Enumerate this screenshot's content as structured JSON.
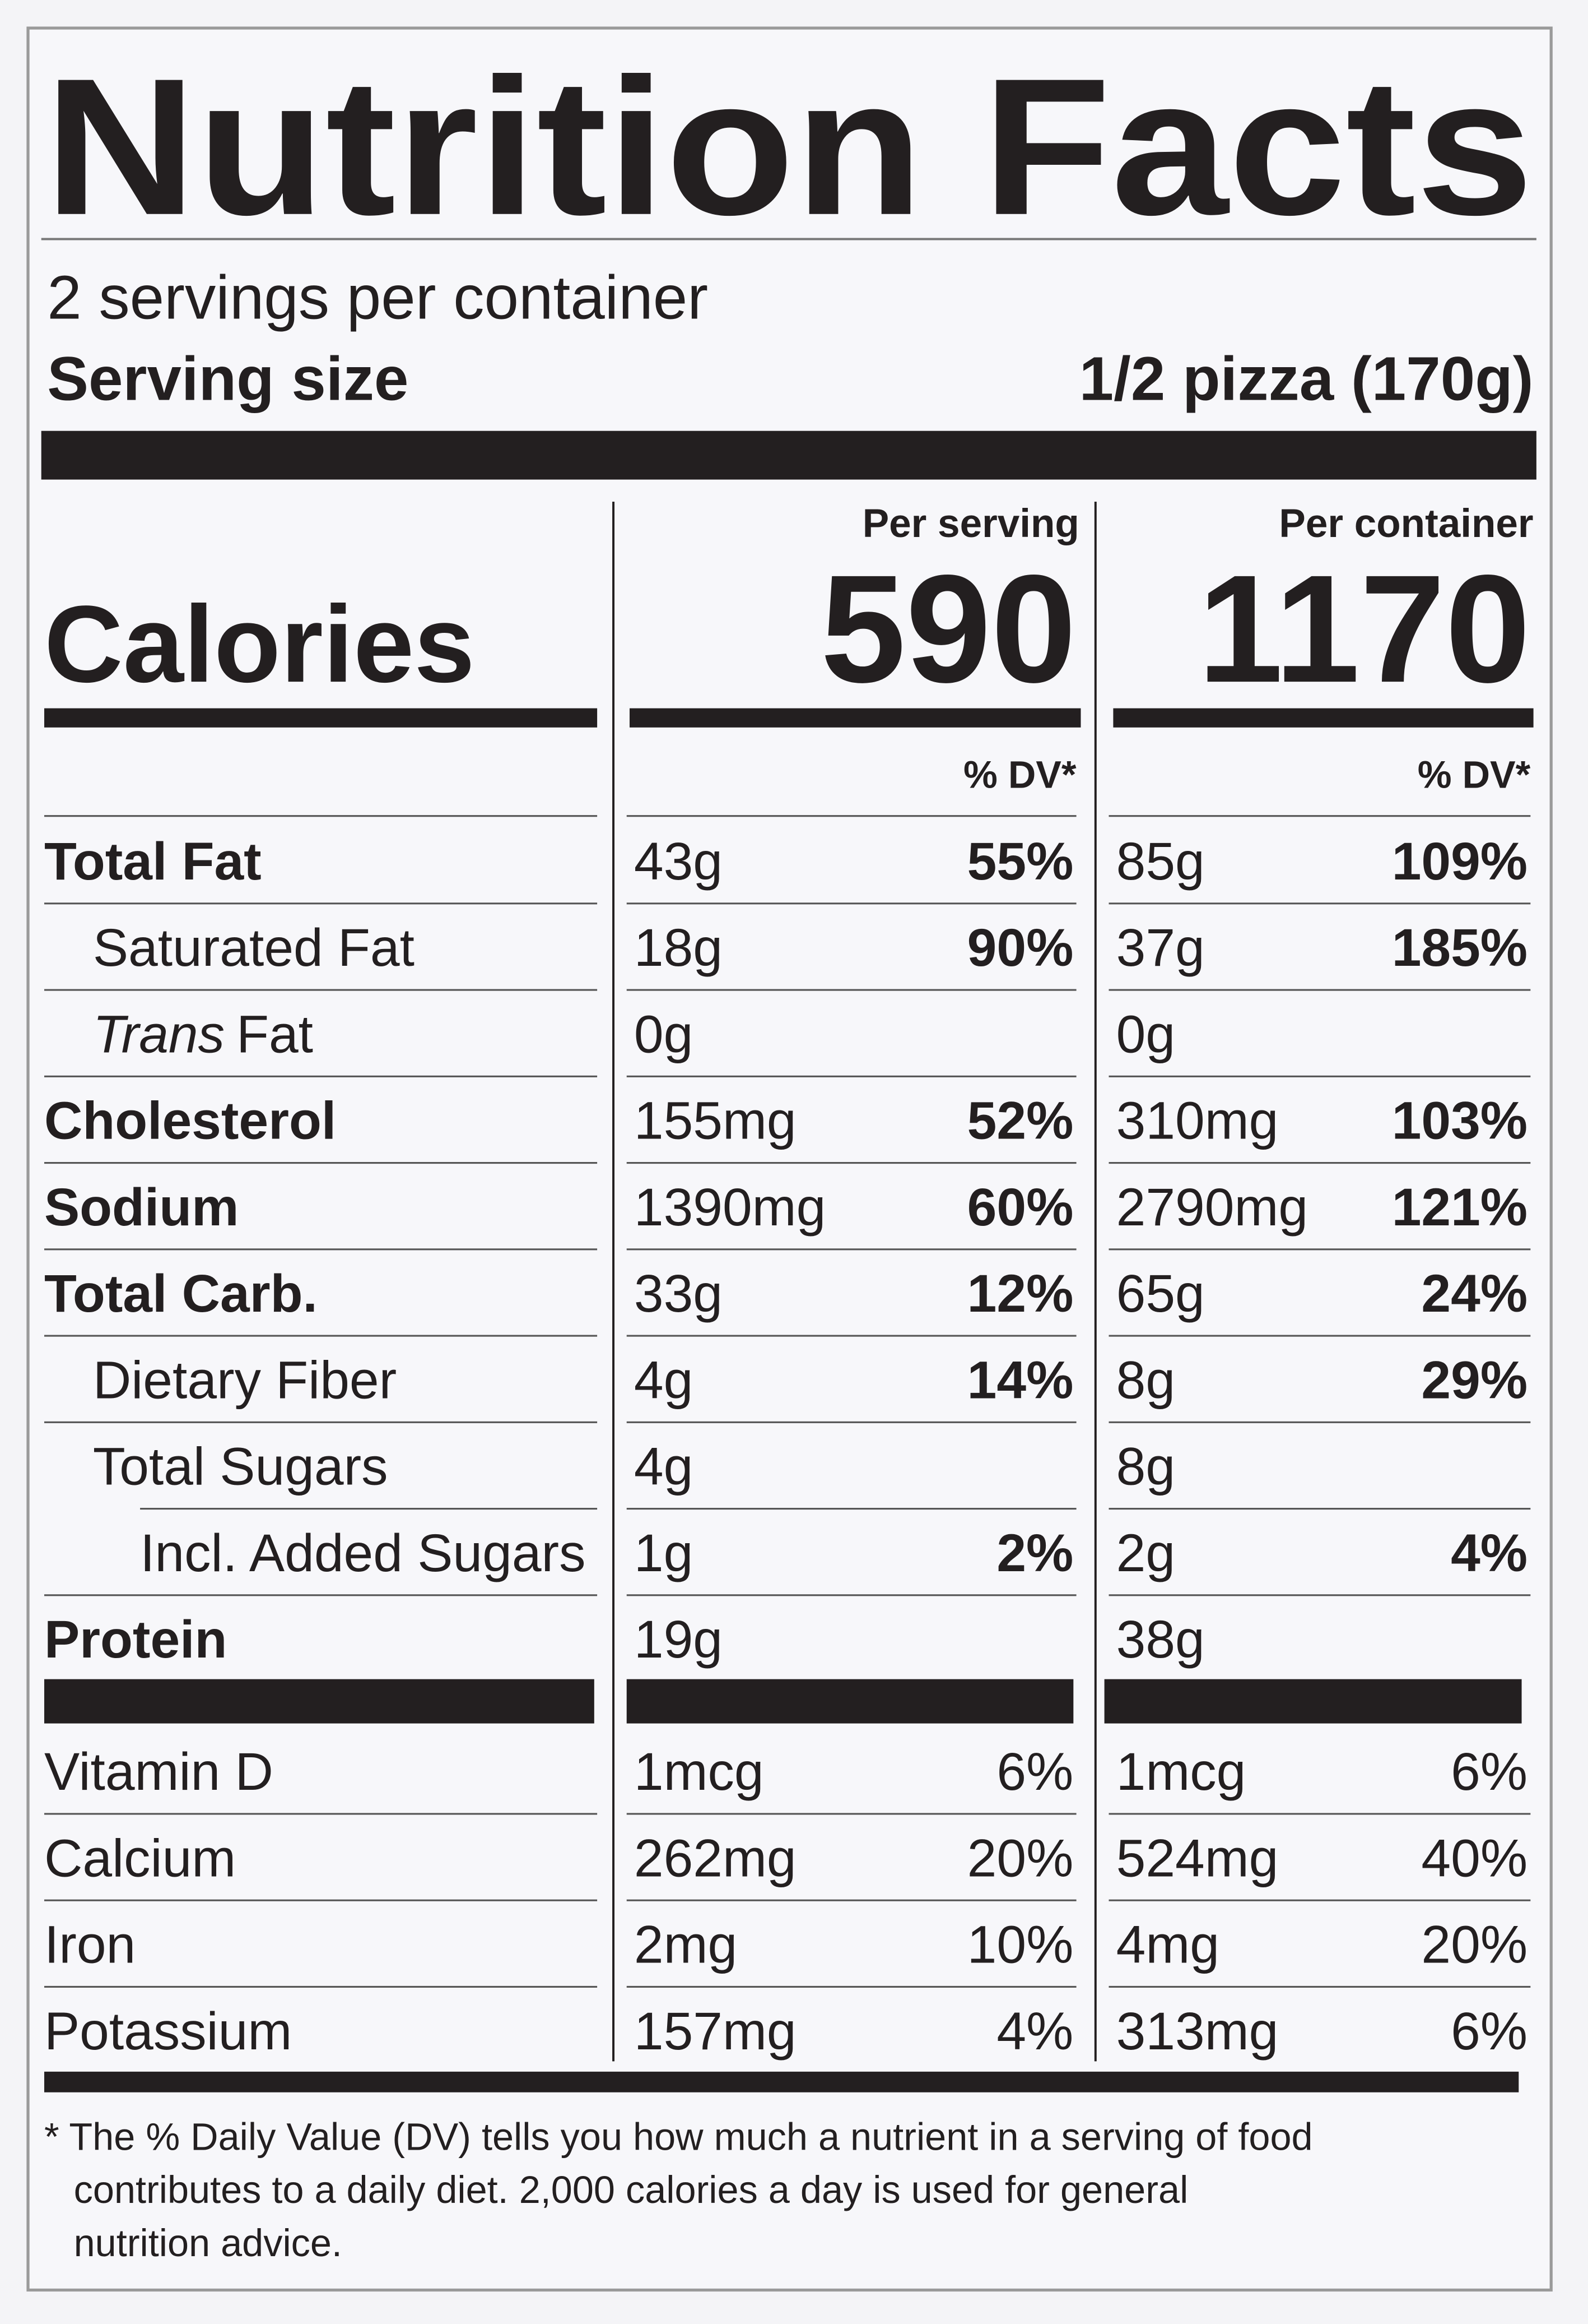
{
  "title": "Nutrition Facts",
  "servings_per_container": "2 servings per container",
  "serving_size": {
    "label": "Serving size",
    "value": "1/2 pizza (170g)"
  },
  "calories": {
    "label": "Calories",
    "per_serving_header": "Per serving",
    "per_container_header": "Per container",
    "per_serving": 590,
    "per_container": 1170,
    "dv_header": "% DV*"
  },
  "nutrients": [
    {
      "name": "Total Fat",
      "level": 0,
      "bold": true,
      "per_serving": {
        "amount": "43g",
        "dv": "55%"
      },
      "per_container": {
        "amount": "85g",
        "dv": "109%"
      }
    },
    {
      "name": "Saturated Fat",
      "level": 1,
      "bold": false,
      "per_serving": {
        "amount": "18g",
        "dv": "90%"
      },
      "per_container": {
        "amount": "37g",
        "dv": "185%"
      }
    },
    {
      "name_italic": "Trans",
      "name": "Fat",
      "level": 1,
      "bold": false,
      "per_serving": {
        "amount": "0g"
      },
      "per_container": {
        "amount": "0g"
      }
    },
    {
      "name": "Cholesterol",
      "level": 0,
      "bold": true,
      "per_serving": {
        "amount": "155mg",
        "dv": "52%"
      },
      "per_container": {
        "amount": "310mg",
        "dv": "103%"
      }
    },
    {
      "name": "Sodium",
      "level": 0,
      "bold": true,
      "per_serving": {
        "amount": "1390mg",
        "dv": "60%"
      },
      "per_container": {
        "amount": "2790mg",
        "dv": "121%"
      }
    },
    {
      "name": "Total Carb.",
      "level": 0,
      "bold": true,
      "per_serving": {
        "amount": "33g",
        "dv": "12%"
      },
      "per_container": {
        "amount": "65g",
        "dv": "24%"
      }
    },
    {
      "name": "Dietary Fiber",
      "level": 1,
      "bold": false,
      "per_serving": {
        "amount": "4g",
        "dv": "14%"
      },
      "per_container": {
        "amount": "8g",
        "dv": "29%"
      }
    },
    {
      "name": "Total Sugars",
      "level": 1,
      "bold": false,
      "per_serving": {
        "amount": "4g"
      },
      "per_container": {
        "amount": "8g"
      }
    },
    {
      "name": "Incl. Added Sugars",
      "level": 2,
      "bold": false,
      "per_serving": {
        "amount": "1g",
        "dv": "2%"
      },
      "per_container": {
        "amount": "2g",
        "dv": "4%"
      }
    },
    {
      "name": "Protein",
      "level": 0,
      "bold": true,
      "per_serving": {
        "amount": "19g"
      },
      "per_container": {
        "amount": "38g"
      }
    }
  ],
  "vitamins": [
    {
      "name": "Vitamin D",
      "per_serving": {
        "amount": "1mcg",
        "dv": "6%"
      },
      "per_container": {
        "amount": "1mcg",
        "dv": "6%"
      }
    },
    {
      "name": "Calcium",
      "per_serving": {
        "amount": "262mg",
        "dv": "20%"
      },
      "per_container": {
        "amount": "524mg",
        "dv": "40%"
      }
    },
    {
      "name": "Iron",
      "per_serving": {
        "amount": "2mg",
        "dv": "10%"
      },
      "per_container": {
        "amount": "4mg",
        "dv": "20%"
      }
    },
    {
      "name": "Potassium",
      "per_serving": {
        "amount": "157mg",
        "dv": "4%"
      },
      "per_container": {
        "amount": "313mg",
        "dv": "6%"
      }
    }
  ],
  "footnote": [
    "* The % Daily Value (DV) tells you how much a nutrient in a serving of food",
    "contributes to a daily diet. 2,000 calories a day is used for general",
    "nutrition advice."
  ]
}
